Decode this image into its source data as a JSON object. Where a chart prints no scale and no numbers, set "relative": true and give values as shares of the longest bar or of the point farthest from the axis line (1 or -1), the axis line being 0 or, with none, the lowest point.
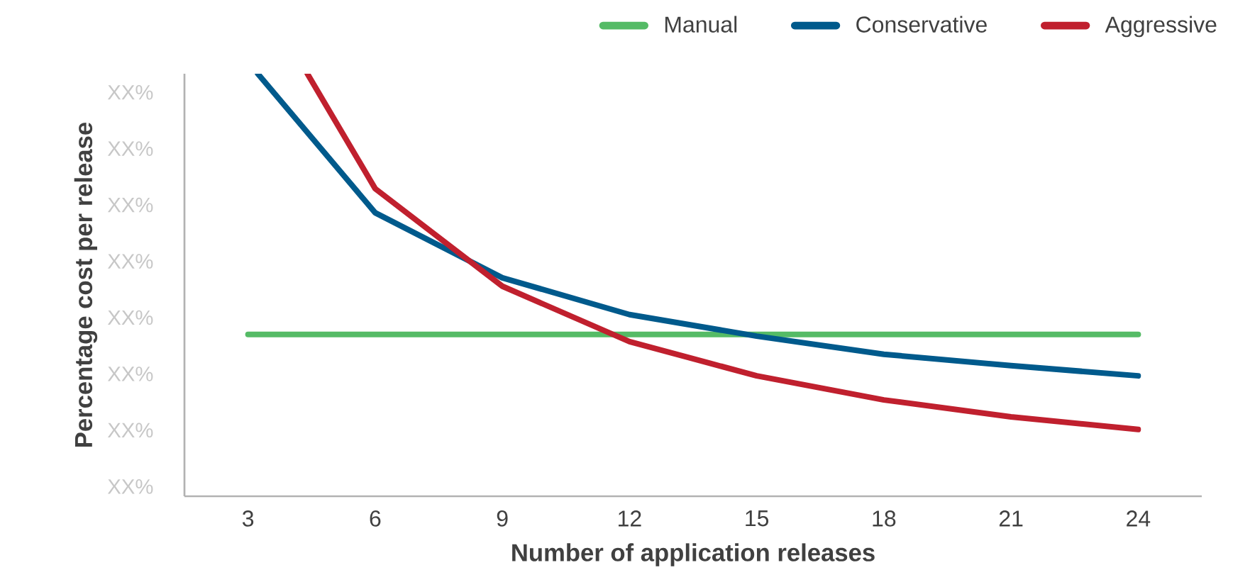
{
  "chart_data": {
    "type": "line",
    "relative": true,
    "xlabel": "Number of application releases",
    "ylabel": "Percentage cost per release",
    "xlim": [
      1.5,
      25.5
    ],
    "xticks": [
      3,
      6,
      9,
      12,
      15,
      18,
      21,
      24
    ],
    "annotations": [
      "XX%",
      "XX%",
      "XX%",
      "XX%",
      "XX%",
      "XX%",
      "XX%",
      "XX%"
    ],
    "series": [
      {
        "name": "Manual",
        "color": "#55bb66",
        "x": [
          3,
          6,
          9,
          12,
          15,
          18,
          21,
          24
        ],
        "values": [
          0.383,
          0.383,
          0.383,
          0.383,
          0.383,
          0.383,
          0.383,
          0.383
        ]
      },
      {
        "name": "Conservative",
        "color": "#005a8c",
        "x": [
          3.23,
          6,
          9,
          12,
          15,
          18,
          21,
          24
        ],
        "values": [
          1.0,
          0.671,
          0.517,
          0.43,
          0.379,
          0.336,
          0.309,
          0.285
        ]
      },
      {
        "name": "Aggressive",
        "color": "#c0202e",
        "x": [
          4.4,
          6,
          9,
          12,
          15,
          18,
          21,
          24
        ],
        "values": [
          1.0,
          0.728,
          0.497,
          0.366,
          0.285,
          0.228,
          0.188,
          0.158
        ]
      }
    ],
    "legend": "top right",
    "grid": false,
    "marker": "none",
    "line_style": "solid"
  }
}
